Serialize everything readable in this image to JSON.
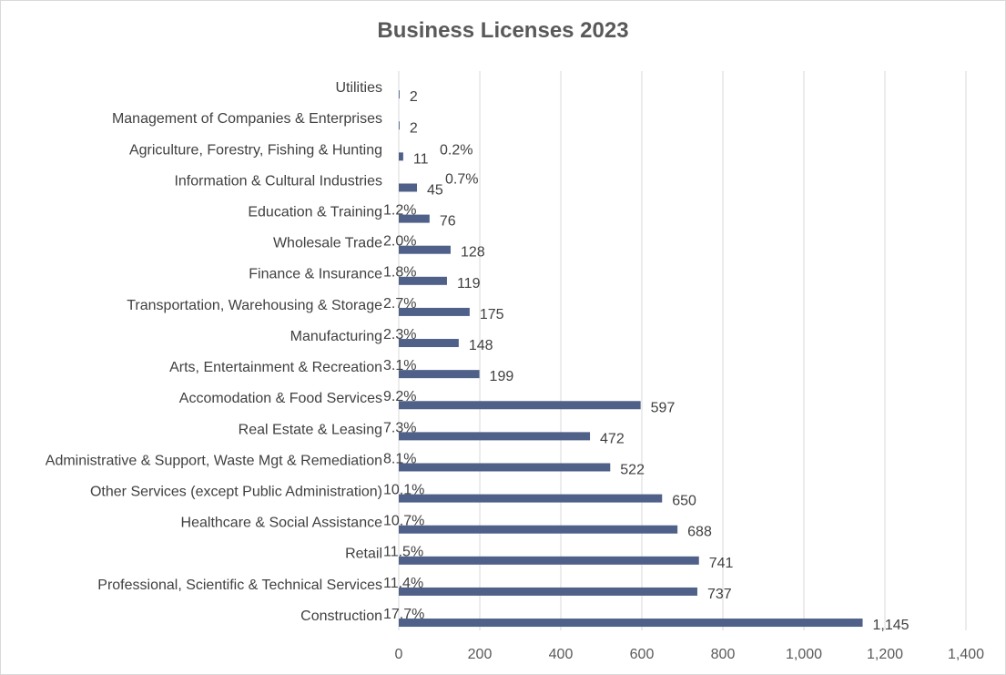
{
  "chart_data": {
    "type": "bar",
    "orientation": "horizontal",
    "title": "Business Licenses 2023",
    "xlabel": "",
    "ylabel": "",
    "xlim": [
      0,
      1400
    ],
    "x_ticks": [
      0,
      200,
      400,
      600,
      800,
      1000,
      1200,
      1400
    ],
    "x_tick_labels": [
      "0",
      "200",
      "400",
      "600",
      "800",
      "1,000",
      "1,200",
      "1,400"
    ],
    "grid": "vertical",
    "bar_color": "#4f6089",
    "categories": [
      "Utilities",
      "Management of Companies & Enterprises",
      "Agriculture, Forestry, Fishing & Hunting",
      "Information & Cultural Industries",
      "Education & Training",
      "Wholesale Trade",
      "Finance & Insurance",
      "Transportation, Warehousing & Storage",
      "Manufacturing",
      "Arts, Entertainment & Recreation",
      "Accomodation & Food Services",
      "Real Estate & Leasing",
      "Administrative & Support, Waste Mgt & Remediation",
      "Other Services (except Public Administration)",
      "Healthcare & Social Assistance",
      "Retail",
      "Professional, Scientific & Technical Services",
      "Construction"
    ],
    "values": [
      2,
      2,
      11,
      45,
      76,
      128,
      119,
      175,
      148,
      199,
      597,
      472,
      522,
      650,
      688,
      741,
      737,
      1145
    ],
    "value_labels": [
      "2",
      "2",
      "11",
      "45",
      "76",
      "128",
      "119",
      "175",
      "148",
      "199",
      "597",
      "472",
      "522",
      "650",
      "688",
      "741",
      "737",
      "1,145"
    ],
    "percent_labels": [
      "",
      "",
      "0.2%",
      "0.7%",
      "1.2%",
      "2.0%",
      "1.8%",
      "2.7%",
      "2.3%",
      "3.1%",
      "9.2%",
      "7.3%",
      "8.1%",
      "10.1%",
      "10.7%",
      "11.5%",
      "11.4%",
      "17.7%"
    ]
  }
}
